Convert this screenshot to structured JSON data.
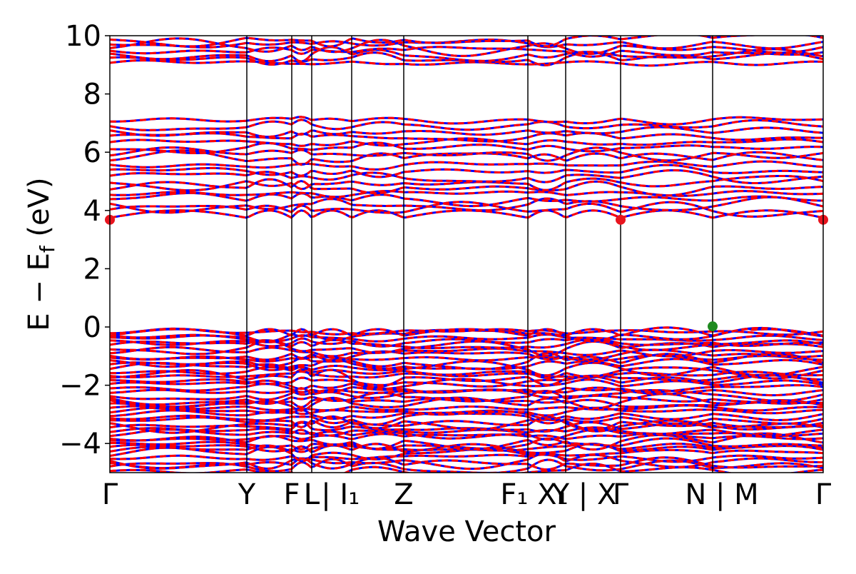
{
  "chart_data": {
    "type": "line",
    "title": "",
    "xlabel": "Wave Vector",
    "ylabel": "E − E_f (eV)",
    "ylim": [
      -5,
      10
    ],
    "yticks": [
      -4,
      -2,
      0,
      2,
      4,
      6,
      8,
      10
    ],
    "ytick_labels": [
      "−4",
      "−2",
      "0",
      "2",
      "4",
      "6",
      "8",
      "10"
    ],
    "xlim": [
      0,
      1
    ],
    "kpath_lines": [
      0.192,
      0.255,
      0.283,
      0.339,
      0.412,
      0.586,
      0.639,
      0.716,
      0.845
    ],
    "xticks": [
      {
        "pos": 0.0,
        "label": "Γ"
      },
      {
        "pos": 0.192,
        "label": "Y"
      },
      {
        "pos": 0.255,
        "label": "F"
      },
      {
        "pos": 0.283,
        "label": "L"
      },
      {
        "pos": 0.311,
        "label": "I | I₁"
      },
      {
        "pos": 0.412,
        "label": "Z"
      },
      {
        "pos": 0.595,
        "label": "F₁ X₁"
      },
      {
        "pos": 0.665,
        "label": "Y | X"
      },
      {
        "pos": 0.716,
        "label": "Γ"
      },
      {
        "pos": 0.858,
        "label": "N | M"
      },
      {
        "pos": 1.0,
        "label": "Γ"
      }
    ],
    "band_colors": {
      "spin_up": "#0000ff",
      "spin_down": "#ff0000"
    },
    "conduction_band_minimum": [
      {
        "x": 0.0,
        "y": 3.68
      },
      {
        "x": 0.716,
        "y": 3.68
      },
      {
        "x": 1.0,
        "y": 3.68
      }
    ],
    "valence_band_maximum": [
      {
        "x": 0.845,
        "y": 0.02
      }
    ],
    "marker_colors": {
      "cbm": "#e8141e",
      "vbm": "#1f8a1f"
    },
    "band_groups": [
      {
        "name": "top",
        "n": 7,
        "lo": 9.0,
        "hi": 9.95
      },
      {
        "name": "upper-mid",
        "n": 18,
        "lo": 3.7,
        "hi": 7.2
      },
      {
        "name": "valence",
        "n": 44,
        "lo": -5.0,
        "hi": 0.0
      }
    ]
  }
}
